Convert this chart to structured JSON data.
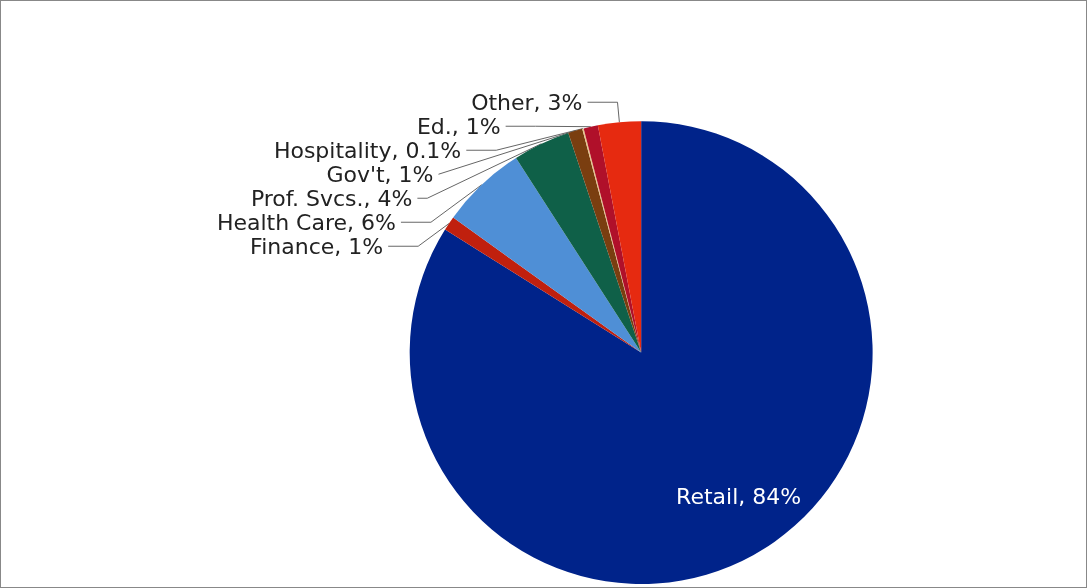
{
  "chart_data": {
    "type": "pie",
    "categories": [
      "Retail",
      "Finance",
      "Health Care",
      "Prof. Svcs.",
      "Gov't",
      "Hospitality",
      "Ed.",
      "Other"
    ],
    "values": [
      84,
      1,
      6,
      4,
      1,
      0.1,
      1,
      3
    ],
    "value_labels": [
      "84%",
      "1%",
      "6%",
      "4%",
      "1%",
      "0.1%",
      "1%",
      "3%"
    ],
    "colors": [
      "#00238a",
      "#c0200e",
      "#4f8fd6",
      "#0f6048",
      "#7a3e10",
      "#e8c58a",
      "#b0102a",
      "#e62a10"
    ],
    "legend": false
  }
}
